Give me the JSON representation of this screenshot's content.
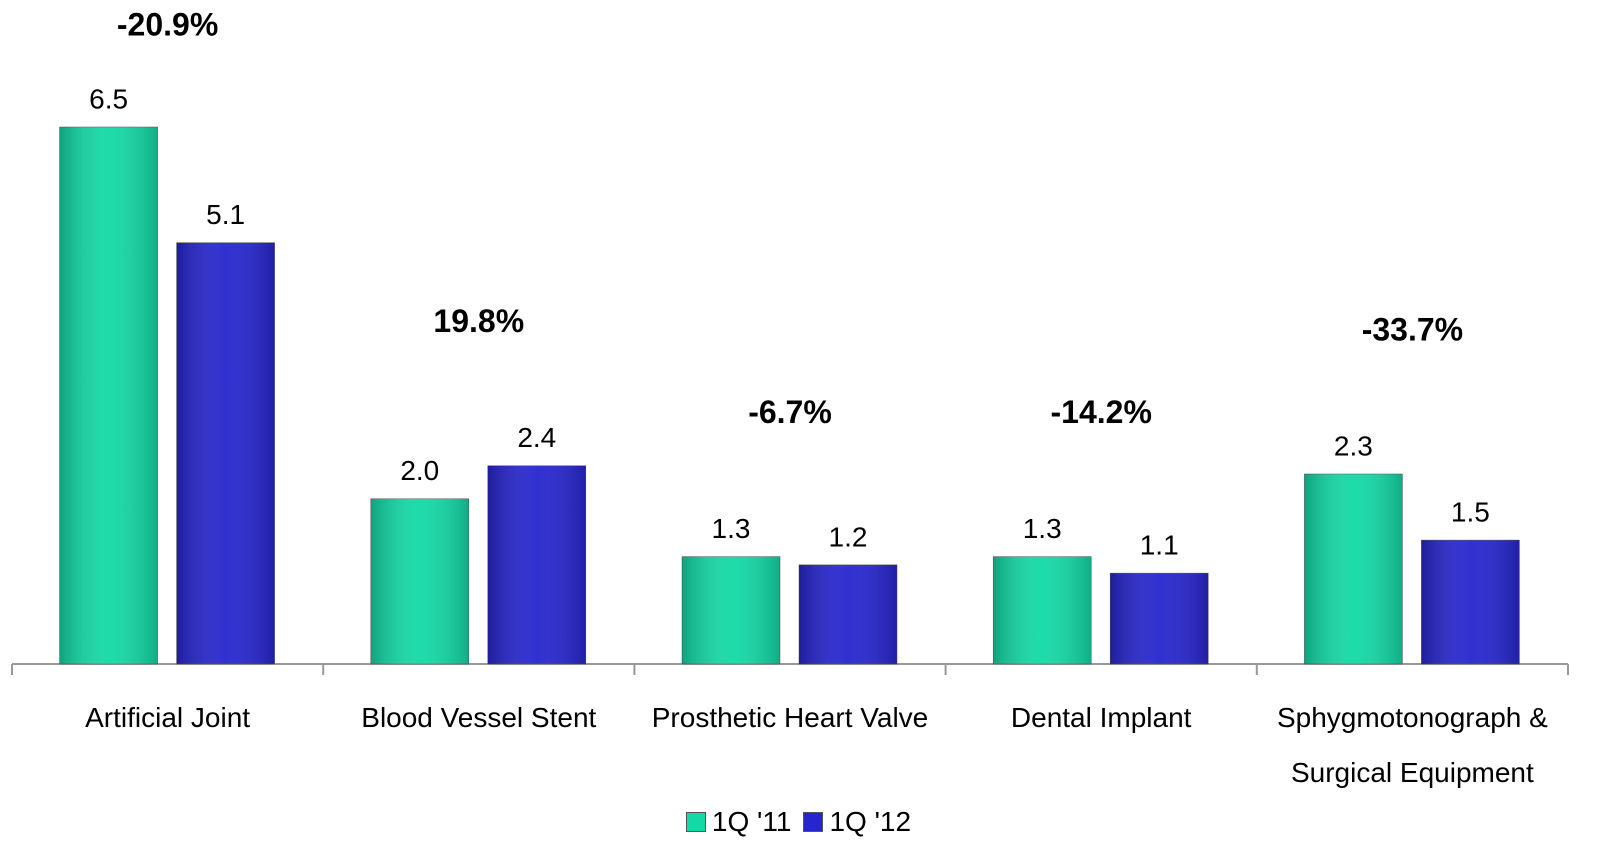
{
  "chart_data": {
    "type": "bar",
    "categories": [
      "Artificial Joint",
      "Blood Vessel Stent",
      "Prosthetic Heart Valve",
      "Dental Implant",
      "Sphygmotonograph & Surgical Equipment"
    ],
    "series": [
      {
        "name": "1Q '11",
        "color": "#12d9a6",
        "values": [
          6.5,
          2.0,
          1.3,
          1.3,
          2.3
        ],
        "value_labels": [
          "6.5",
          "2.0",
          "1.3",
          "1.3",
          "2.3"
        ]
      },
      {
        "name": "1Q '12",
        "color": "#2626cf",
        "values": [
          5.1,
          2.4,
          1.2,
          1.1,
          1.5
        ],
        "value_labels": [
          "5.1",
          "2.4",
          "1.2",
          "1.1",
          "1.5"
        ]
      }
    ],
    "annotations": [
      "-20.9%",
      "19.8%",
      "-6.7%",
      "-14.2%",
      "-33.7%"
    ],
    "legend": "bottom"
  }
}
